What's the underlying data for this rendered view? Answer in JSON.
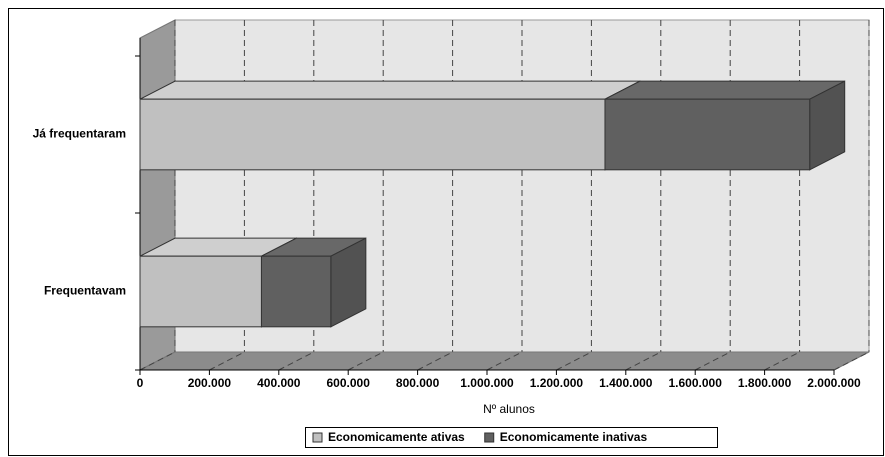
{
  "chart_data": {
    "type": "bar3d_stacked_horizontal",
    "categories": [
      "Já frequentaram",
      "Frequentavam"
    ],
    "series": [
      {
        "name": "Economicamente ativas",
        "color": "#c0c0c0",
        "values": [
          1340000,
          350000
        ]
      },
      {
        "name": "Economicamente inativas",
        "color": "#606060",
        "values": [
          590000,
          200000
        ]
      }
    ],
    "xlabel": "Nº alunos",
    "xlim": [
      0,
      2000000
    ],
    "xticks": [
      0,
      {
        "value": 200000,
        "label": "200.000"
      },
      {
        "value": 400000,
        "label": "400.000"
      },
      {
        "value": 600000,
        "label": "600.000"
      },
      {
        "value": 800000,
        "label": "800.000"
      },
      {
        "value": 1000000,
        "label": "1.000.000"
      },
      {
        "value": 1200000,
        "label": "1.200.000"
      },
      {
        "value": 1400000,
        "label": "1.400.000"
      },
      {
        "value": 1600000,
        "label": "1.600.000"
      },
      {
        "value": 1800000,
        "label": "1.800.000"
      },
      {
        "value": 2000000,
        "label": "2.000.000"
      }
    ],
    "grid": true,
    "legend": "bottom"
  }
}
